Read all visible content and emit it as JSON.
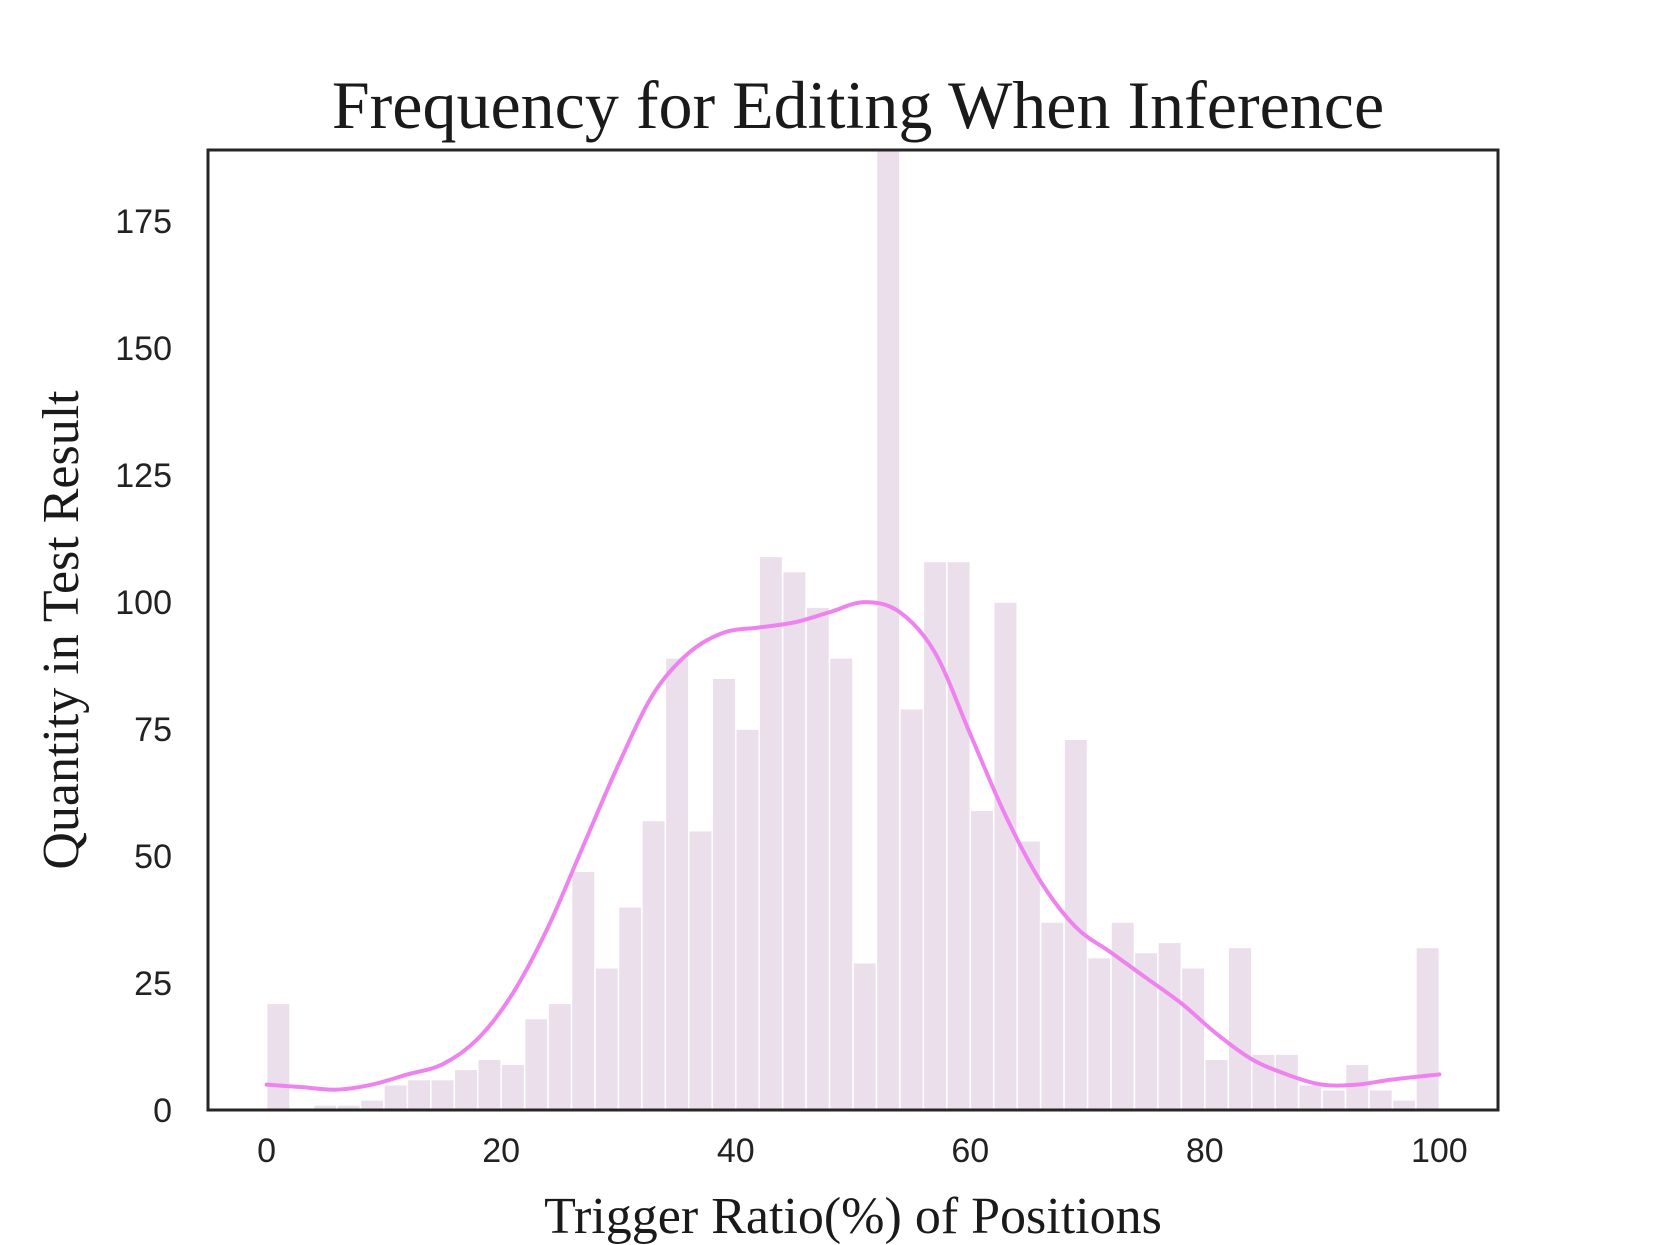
{
  "chart_data": {
    "type": "bar",
    "title": "Frequency for Editing When Inference",
    "xlabel": "Trigger Ratio(%) of Positions",
    "ylabel": "Quantity in Test Result",
    "xlim": [
      -5,
      105
    ],
    "ylim": [
      0,
      189
    ],
    "xticks": [
      0,
      20,
      40,
      60,
      80,
      100
    ],
    "yticks": [
      0,
      25,
      50,
      75,
      100,
      125,
      150,
      175
    ],
    "grid": false,
    "bin_width": 2,
    "bins_start": [
      0,
      2,
      4,
      6,
      8,
      10,
      12,
      14,
      16,
      18,
      20,
      22,
      24,
      26,
      28,
      30,
      32,
      34,
      36,
      38,
      40,
      42,
      44,
      46,
      48,
      50,
      52,
      54,
      56,
      58,
      60,
      62,
      64,
      66,
      68,
      70,
      72,
      74,
      76,
      78,
      80,
      82,
      84,
      86,
      88,
      90,
      92,
      94,
      96,
      98
    ],
    "values": [
      21,
      0,
      1,
      1,
      2,
      5,
      6,
      6,
      8,
      10,
      9,
      18,
      21,
      47,
      28,
      40,
      57,
      89,
      55,
      85,
      75,
      109,
      106,
      99,
      89,
      29,
      189,
      79,
      108,
      108,
      59,
      100,
      53,
      37,
      73,
      30,
      37,
      31,
      33,
      28,
      10,
      32,
      11,
      11,
      5,
      4,
      9,
      4,
      2,
      32
    ],
    "kde": {
      "x": [
        0,
        3,
        6,
        9,
        12,
        15,
        18,
        21,
        24,
        27,
        30,
        33,
        36,
        39,
        42,
        45,
        48,
        51,
        54,
        57,
        60,
        63,
        66,
        69,
        72,
        75,
        78,
        81,
        84,
        87,
        90,
        93,
        96,
        100
      ],
      "y": [
        5,
        4.5,
        4,
        5,
        7,
        9,
        14,
        23,
        36,
        52,
        68,
        82,
        90,
        94,
        95,
        96,
        98,
        100,
        98,
        90,
        74,
        58,
        45,
        36,
        31,
        26,
        21,
        15,
        10,
        7,
        5,
        5,
        6,
        7
      ]
    },
    "colors": {
      "bar": "#ecdfec",
      "kde": "#ee82ee",
      "frame": "#262626"
    }
  }
}
